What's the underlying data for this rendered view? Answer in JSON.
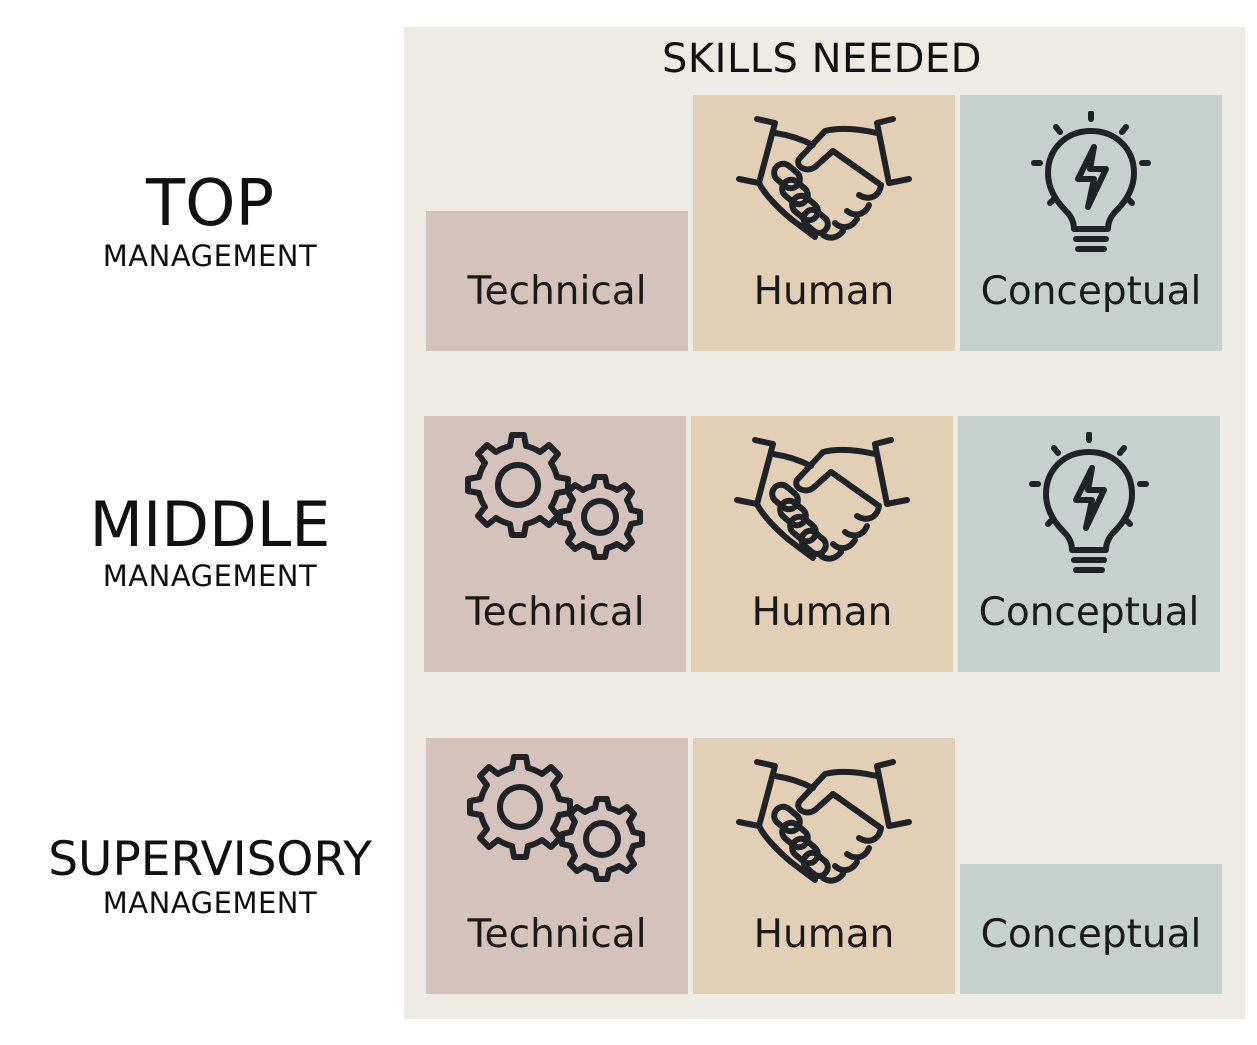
{
  "title": "SKILLS NEEDED",
  "colors": {
    "panel": "#eeebe5",
    "technical": "#d5c3bb",
    "human": "#e3cfb5",
    "conceptual": "#c6d0cd",
    "icon": "#1f2328"
  },
  "levels": [
    {
      "name": "TOP",
      "sub": "MANAGEMENT",
      "cells": [
        {
          "label": "Technical",
          "icon": "none"
        },
        {
          "label": "Human",
          "icon": "handshake-icon"
        },
        {
          "label": "Conceptual",
          "icon": "lightbulb-icon"
        }
      ]
    },
    {
      "name": "MIDDLE",
      "sub": "MANAGEMENT",
      "cells": [
        {
          "label": "Technical",
          "icon": "gears-icon"
        },
        {
          "label": "Human",
          "icon": "handshake-icon"
        },
        {
          "label": "Conceptual",
          "icon": "lightbulb-icon"
        }
      ]
    },
    {
      "name": "SUPERVISORY",
      "sub": "MANAGEMENT",
      "cells": [
        {
          "label": "Technical",
          "icon": "gears-icon"
        },
        {
          "label": "Human",
          "icon": "handshake-icon"
        },
        {
          "label": "Conceptual",
          "icon": "none"
        }
      ]
    }
  ]
}
